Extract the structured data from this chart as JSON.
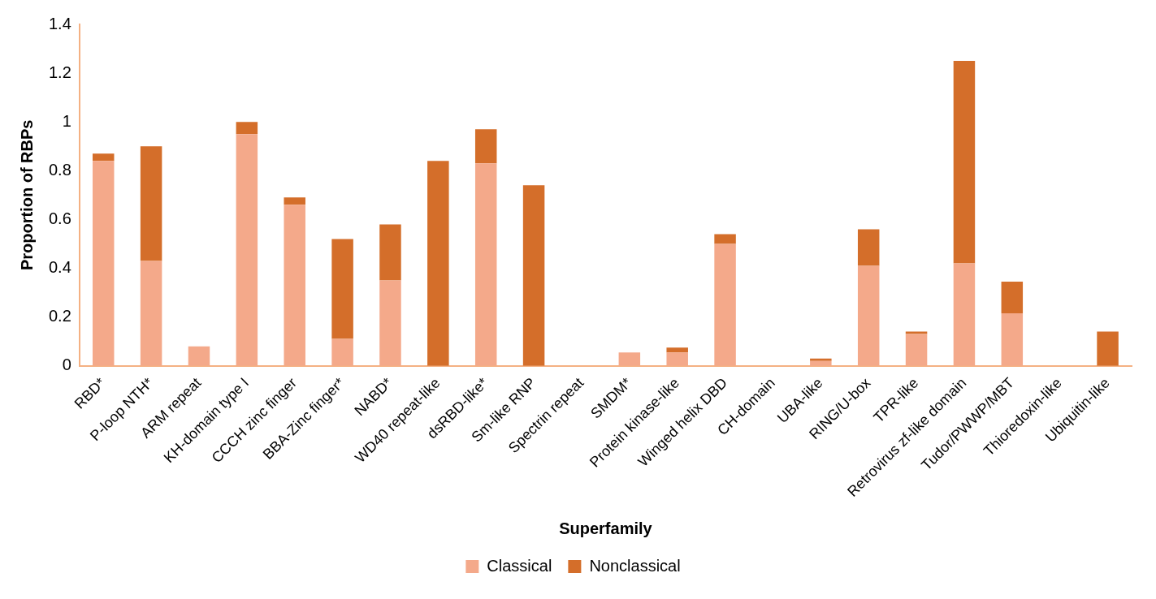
{
  "chart_data": {
    "type": "bar",
    "stacked": true,
    "xlabel": "Superfamily",
    "ylabel": "Proportion of RBPs",
    "categories": [
      "RBD*",
      "P-loop NTH*",
      "ARM repeat",
      "KH-domain type I",
      "CCCH zinc finger",
      "BBA-Zinc finger*",
      "NABD*",
      "WD40 repeat-like",
      "dsRBD-like*",
      "Sm-like RNP",
      "Spectrin repeat",
      "SMDM*",
      "Protein kinase-like",
      "Winged helix DBD",
      "CH-domain",
      "UBA-like",
      "RING/U-box",
      "TPR-like",
      "Retrovirus zf-like domain",
      "Tudor/PWWP/MBT",
      "Thioredoxin-like",
      "Ubiquitin-like"
    ],
    "series": [
      {
        "name": "Classical",
        "color": "#f4a98a",
        "values": [
          0.84,
          0.43,
          0.08,
          0.95,
          0.66,
          0.11,
          0.35,
          0,
          0.83,
          0,
          0,
          0.055,
          0.055,
          0.5,
          0,
          0.02,
          0.41,
          0.13,
          0.42,
          0.215,
          0,
          0
        ]
      },
      {
        "name": "Nonclassical",
        "color": "#d46e2a",
        "values": [
          0.03,
          0.47,
          0,
          0.05,
          0.03,
          0.41,
          0.23,
          0.84,
          0.14,
          0.74,
          0,
          0,
          0.02,
          0.04,
          0,
          0.01,
          0.15,
          0.01,
          0.83,
          0.13,
          0,
          0.14
        ]
      }
    ],
    "ylim": [
      0,
      1.4
    ],
    "yticks": [
      0,
      0.2,
      0.4,
      0.6,
      0.8,
      1,
      1.2,
      1.4
    ],
    "grid": false,
    "legend": "bottom"
  }
}
